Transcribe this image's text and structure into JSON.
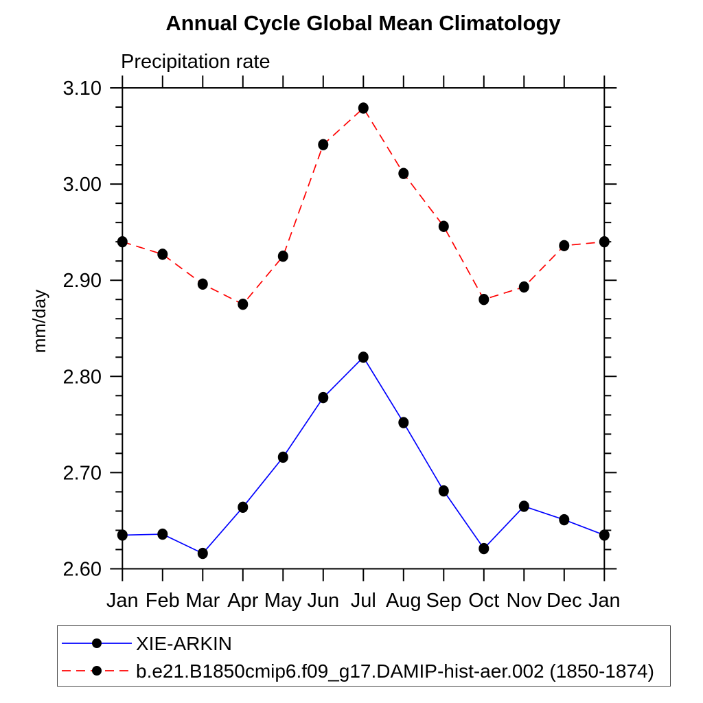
{
  "chart_data": {
    "type": "line",
    "title": "Annual Cycle Global Mean Climatology",
    "subtitle": "Precipitation rate",
    "ylabel": "mm/day",
    "categories": [
      "Jan",
      "Feb",
      "Mar",
      "Apr",
      "May",
      "Jun",
      "Jul",
      "Aug",
      "Sep",
      "Oct",
      "Nov",
      "Dec",
      "Jan"
    ],
    "ylim": [
      2.6,
      3.1
    ],
    "ytick_major_interval": 0.1,
    "ytick_minor_interval": 0.02,
    "ytick_labels": [
      "2.60",
      "2.70",
      "2.80",
      "2.90",
      "3.00",
      "3.10"
    ],
    "grid": false,
    "legend_position": "bottom-left",
    "axis_color": "#000000",
    "marker_color": "#000000",
    "series": [
      {
        "name": "XIE-ARKIN",
        "color": "#0000ff",
        "line_style": "solid",
        "marker": "filled-circle",
        "values": [
          2.635,
          2.636,
          2.616,
          2.664,
          2.716,
          2.778,
          2.82,
          2.752,
          2.681,
          2.621,
          2.665,
          2.651,
          2.635
        ]
      },
      {
        "name": "b.e21.B1850cmip6.f09_g17.DAMIP-hist-aer.002 (1850-1874)",
        "color": "#ff0000",
        "line_style": "dashed",
        "marker": "filled-circle",
        "values": [
          2.94,
          2.927,
          2.896,
          2.875,
          2.925,
          3.041,
          3.079,
          3.011,
          2.956,
          2.88,
          2.893,
          2.936,
          2.94
        ]
      }
    ]
  }
}
